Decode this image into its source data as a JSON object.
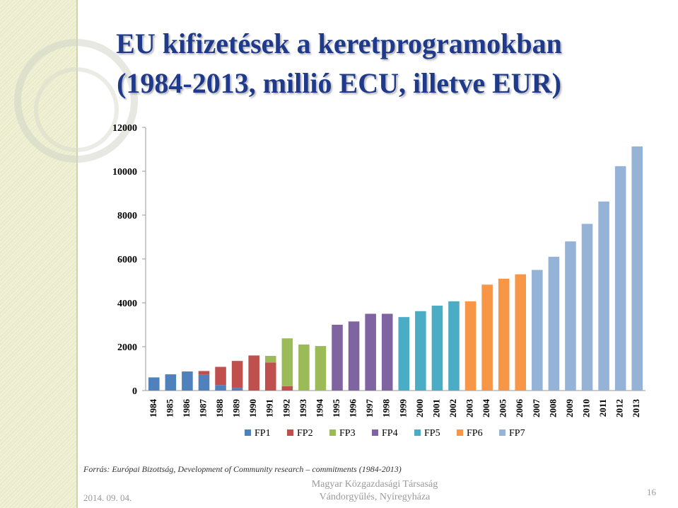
{
  "slide": {
    "title_line1": "EU kifizetések a keretprogramokban",
    "title_line2": "(1984-2013, millió ECU, illetve EUR)",
    "source": "Forrás: Európai Bizottság, Development of Community research – commitments (1984-2013)",
    "date": "2014. 09. 04.",
    "organizer_line1": "Magyar Közgazdasági Társaság",
    "organizer_line2": "Vándorgyűlés, Nyíregyháza",
    "page_number": "16"
  },
  "chart_data": {
    "type": "bar",
    "stacked": true,
    "title": "",
    "xlabel": "",
    "ylabel": "",
    "ylim": [
      0,
      12000
    ],
    "yticks": [
      0,
      2000,
      4000,
      6000,
      8000,
      10000,
      12000
    ],
    "grid": false,
    "legend_position": "bottom",
    "categories": [
      "1984",
      "1985",
      "1986",
      "1987",
      "1988",
      "1989",
      "1990",
      "1991",
      "1992",
      "1993",
      "1994",
      "1995",
      "1996",
      "1997",
      "1998",
      "1999",
      "2000",
      "2001",
      "2002",
      "2003",
      "2004",
      "2005",
      "2006",
      "2007",
      "2008",
      "2009",
      "2010",
      "2011",
      "2012",
      "2013"
    ],
    "series": [
      {
        "name": "FP1",
        "color": "#4f81bd",
        "values": [
          600,
          740,
          870,
          720,
          250,
          120,
          0,
          0,
          0,
          0,
          0,
          0,
          0,
          0,
          0,
          0,
          0,
          0,
          0,
          0,
          0,
          0,
          0,
          0,
          0,
          0,
          0,
          0,
          0,
          0
        ]
      },
      {
        "name": "FP2",
        "color": "#c0504d",
        "values": [
          0,
          0,
          0,
          170,
          830,
          1230,
          1600,
          1280,
          200,
          0,
          0,
          0,
          0,
          0,
          0,
          0,
          0,
          0,
          0,
          0,
          0,
          0,
          0,
          0,
          0,
          0,
          0,
          0,
          0,
          0
        ]
      },
      {
        "name": "FP3",
        "color": "#9bbb59",
        "values": [
          0,
          0,
          0,
          0,
          0,
          0,
          0,
          300,
          2180,
          2100,
          2030,
          0,
          0,
          0,
          0,
          0,
          0,
          0,
          0,
          0,
          0,
          0,
          0,
          0,
          0,
          0,
          0,
          0,
          0,
          0
        ]
      },
      {
        "name": "FP4",
        "color": "#8064a2",
        "values": [
          0,
          0,
          0,
          0,
          0,
          0,
          0,
          0,
          0,
          0,
          0,
          3000,
          3150,
          3500,
          3500,
          0,
          0,
          0,
          0,
          0,
          0,
          0,
          0,
          0,
          0,
          0,
          0,
          0,
          0,
          0
        ]
      },
      {
        "name": "FP5",
        "color": "#4bacc6",
        "values": [
          0,
          0,
          0,
          0,
          0,
          0,
          0,
          0,
          0,
          0,
          0,
          0,
          0,
          0,
          0,
          3350,
          3620,
          3870,
          4070,
          0,
          0,
          0,
          0,
          0,
          0,
          0,
          0,
          0,
          0,
          0
        ]
      },
      {
        "name": "FP6",
        "color": "#f79646",
        "values": [
          0,
          0,
          0,
          0,
          0,
          0,
          0,
          0,
          0,
          0,
          0,
          0,
          0,
          0,
          0,
          0,
          0,
          0,
          0,
          4070,
          4830,
          5100,
          5300,
          0,
          0,
          0,
          0,
          0,
          0,
          0
        ]
      },
      {
        "name": "FP7",
        "color": "#95b3d7",
        "values": [
          0,
          0,
          0,
          0,
          0,
          0,
          0,
          0,
          0,
          0,
          0,
          0,
          0,
          0,
          0,
          0,
          0,
          0,
          0,
          0,
          0,
          0,
          0,
          5500,
          6100,
          6800,
          7600,
          8620,
          10230,
          11130
        ]
      }
    ]
  }
}
